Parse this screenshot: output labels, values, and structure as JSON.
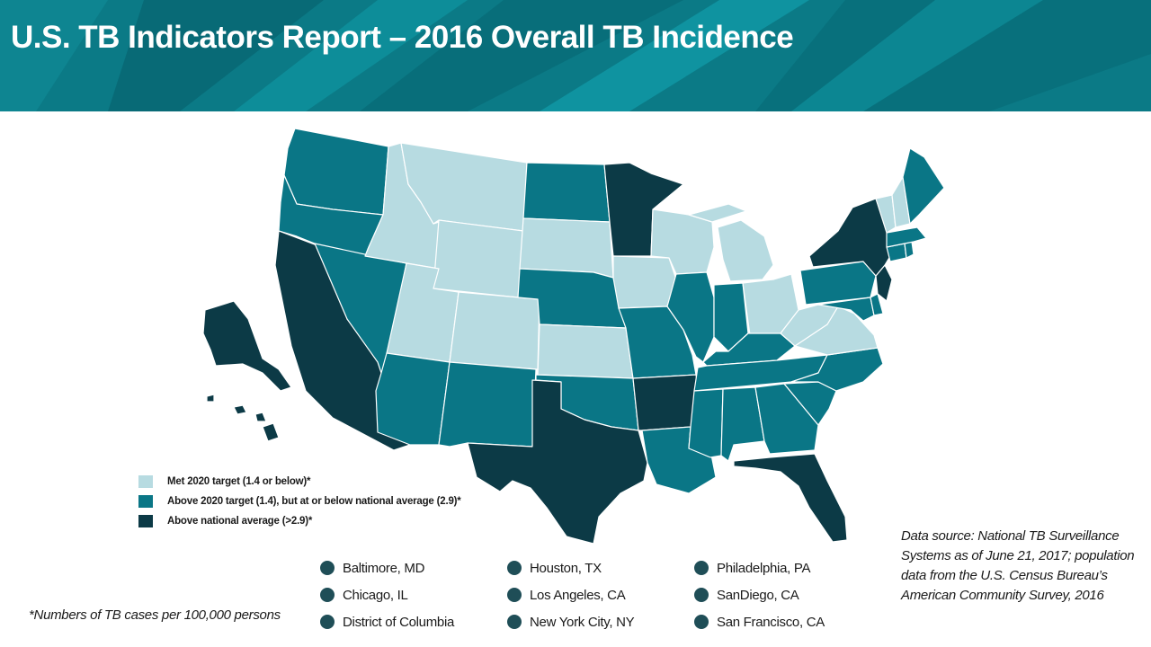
{
  "header": {
    "title": "U.S. TB Indicators Report – 2016 Overall TB Incidence"
  },
  "colors": {
    "met_target": "#b7dbe1",
    "above_target": "#0a7686",
    "above_national": "#0c3a46",
    "banner": "#0b7a86"
  },
  "legend": [
    {
      "label": "Met 2020 target (1.4 or below)*",
      "color": "#b7dbe1"
    },
    {
      "label": "Above 2020 target (1.4), but at or below national average (2.9)*",
      "color": "#0a7686"
    },
    {
      "label": "Above national average (>2.9)*",
      "color": "#0c3a46"
    }
  ],
  "cities": [
    {
      "label": "Baltimore, MD"
    },
    {
      "label": "Chicago, IL"
    },
    {
      "label": "District of Columbia"
    },
    {
      "label": "Houston, TX"
    },
    {
      "label": "Los Angeles, CA"
    },
    {
      "label": "New York City, NY"
    },
    {
      "label": "Philadelphia, PA"
    },
    {
      "label": "SanDiego, CA"
    },
    {
      "label": "San Francisco, CA"
    }
  ],
  "footnote": "*Numbers of TB cases per 100,000 persons",
  "source": "Data source: National TB Surveillance Systems as of June 21, 2017; population data from the U.S. Census Bureau’s American Community Survey, 2016"
}
